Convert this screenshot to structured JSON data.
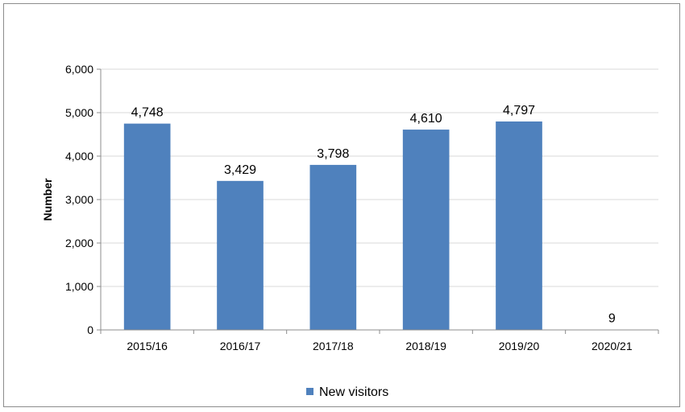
{
  "chart_data": {
    "type": "bar",
    "categories": [
      "2015/16",
      "2016/17",
      "2017/18",
      "2018/19",
      "2019/20",
      "2020/21"
    ],
    "series": [
      {
        "name": "New visitors",
        "values": [
          4748,
          3429,
          3798,
          4610,
          4797,
          9
        ],
        "labels": [
          "4,748",
          "3,429",
          "3,798",
          "4,610",
          "4,797",
          "9"
        ],
        "color": "#4f81bd"
      }
    ],
    "title": "",
    "xlabel": "",
    "ylabel": "Number",
    "ylim": [
      0,
      6000
    ],
    "yticks": [
      0,
      1000,
      2000,
      3000,
      4000,
      5000,
      6000
    ],
    "ytick_labels": [
      "0",
      "1,000",
      "2,000",
      "3,000",
      "4,000",
      "5,000",
      "6,000"
    ],
    "grid": true,
    "gridline_color": "#d9d9d9",
    "legend_position": "bottom"
  }
}
